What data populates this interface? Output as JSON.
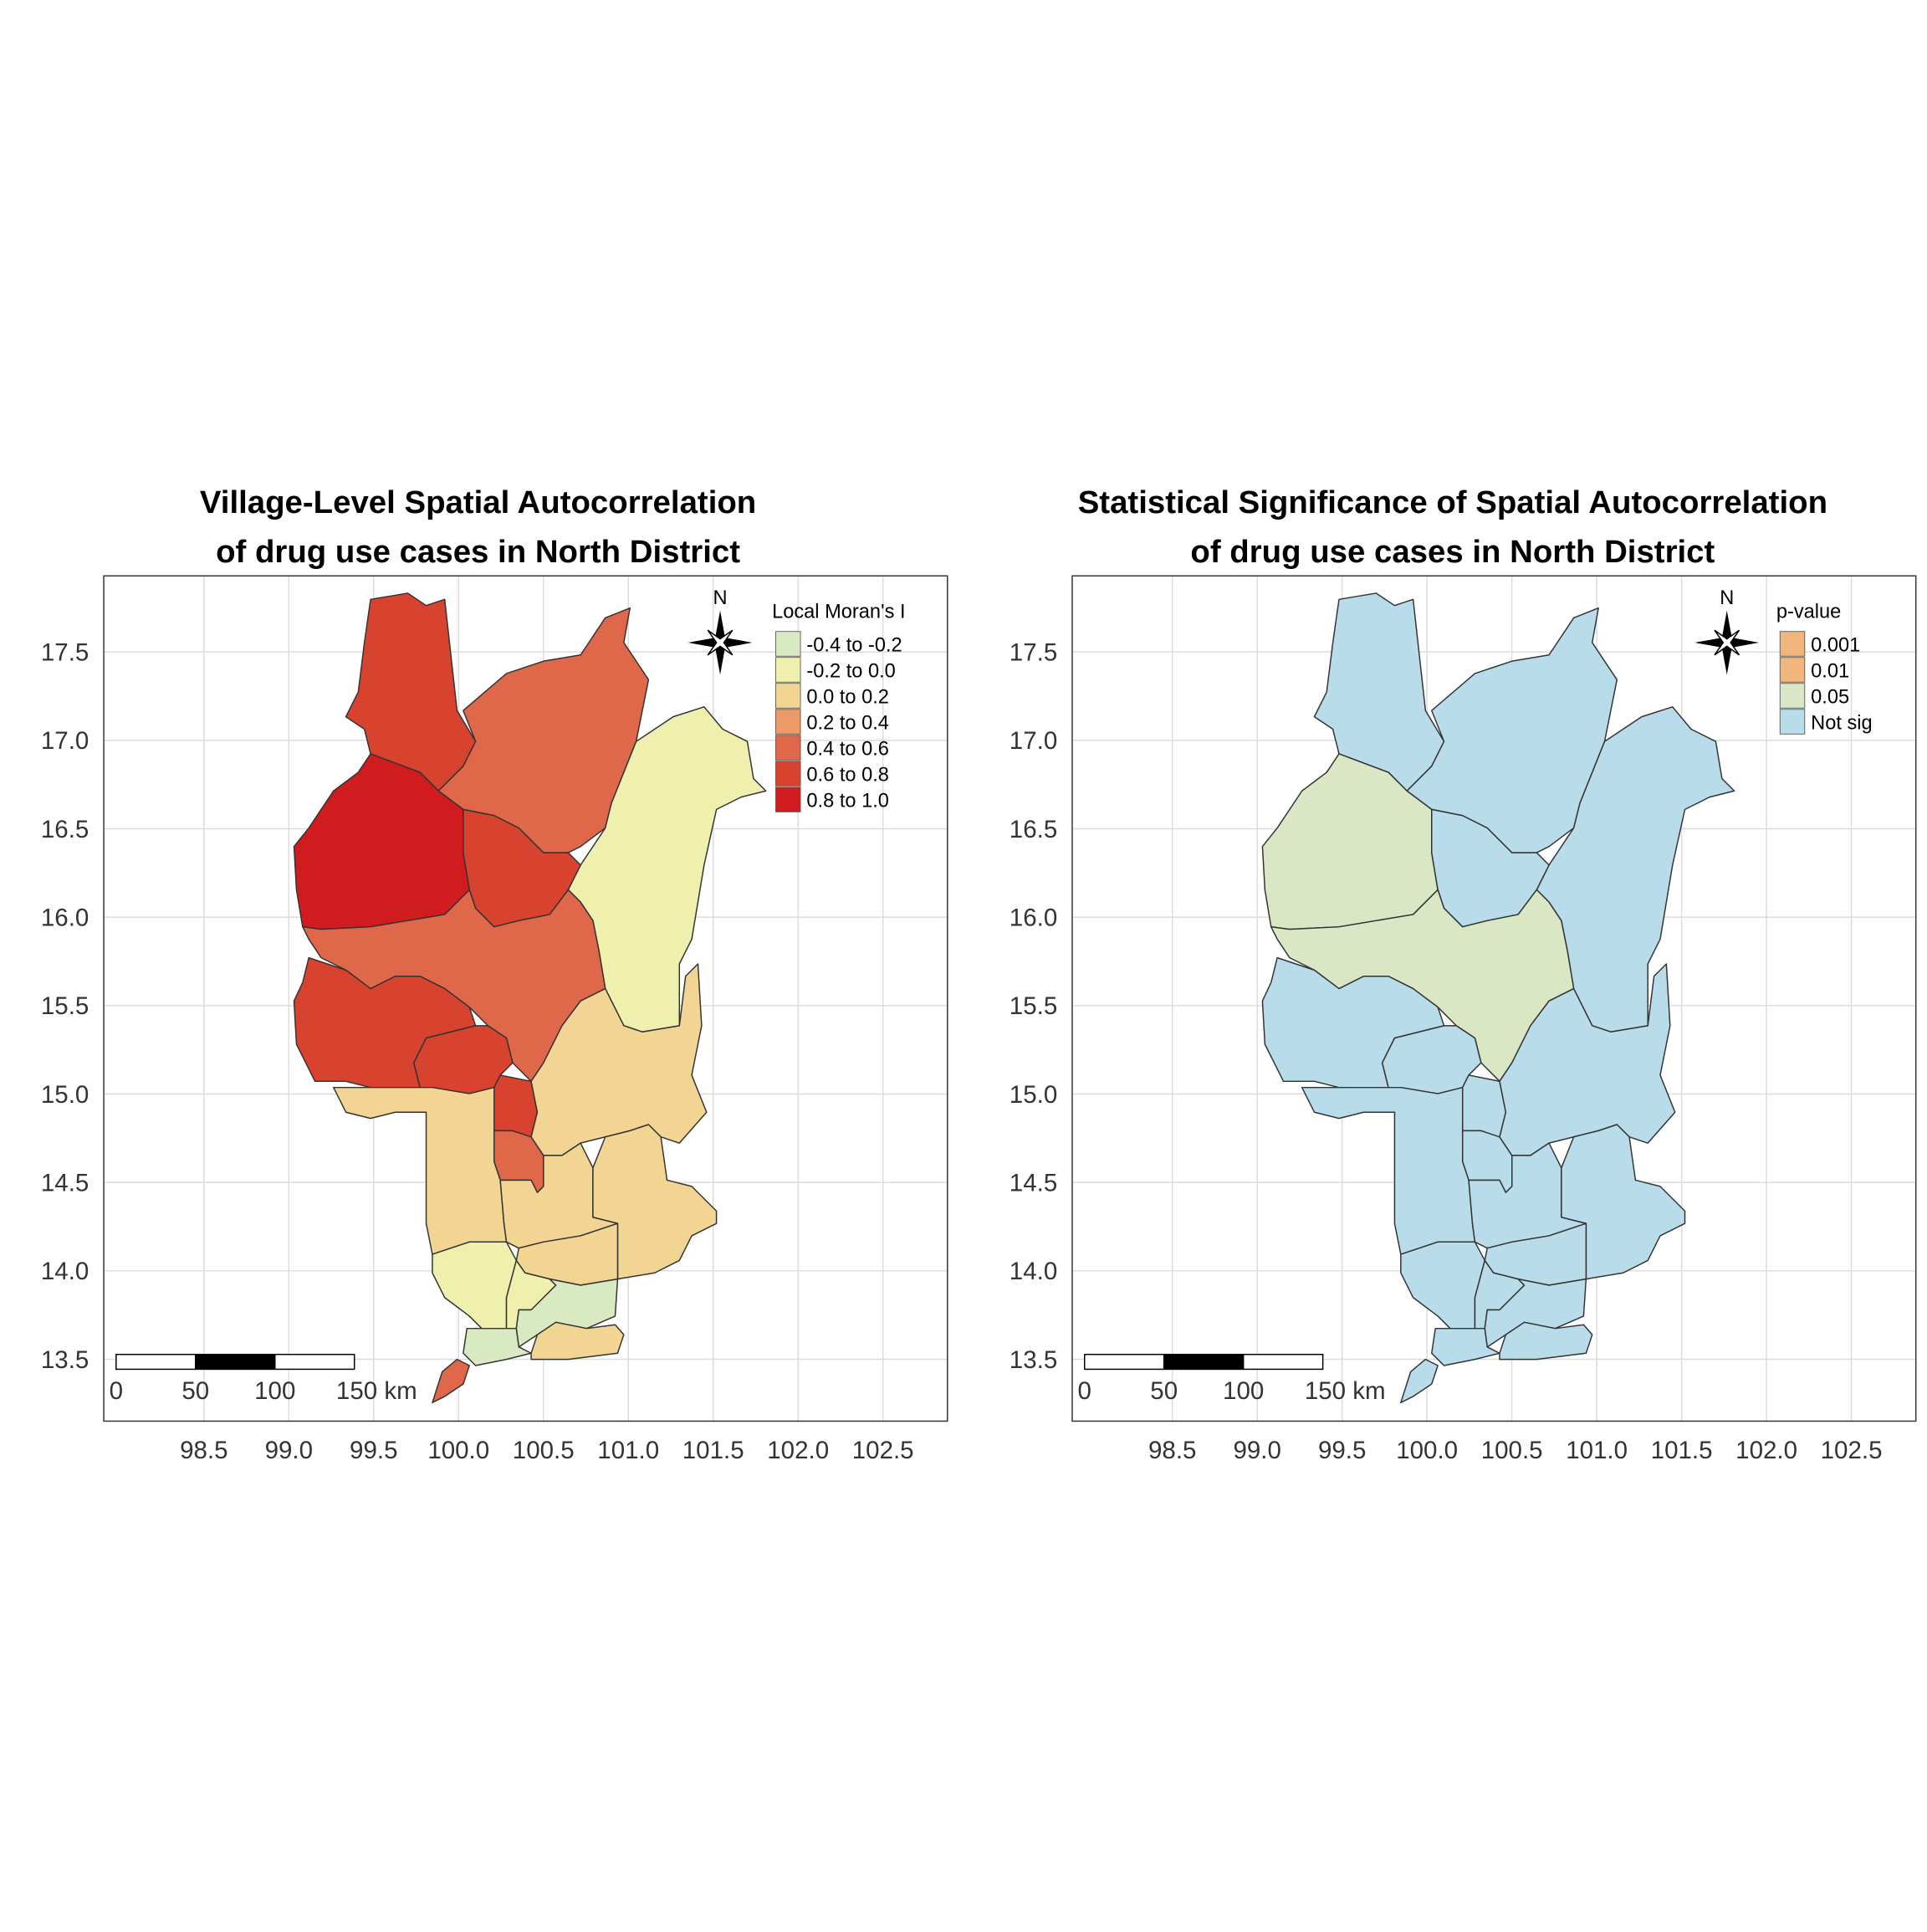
{
  "maps": [
    {
      "title": [
        "Village-Level Spatial Autocorrelation",
        "of drug use cases in North District"
      ],
      "legend_title": "Local Moran's I",
      "legend": [
        {
          "label": "-0.4 to -0.2",
          "color": "#d9eac3"
        },
        {
          "label": "-0.2 to 0.0",
          "color": "#eff0ad"
        },
        {
          "label": "0.0 to 0.2",
          "color": "#f2d592"
        },
        {
          "label": "0.2 to 0.4",
          "color": "#eb9a68"
        },
        {
          "label": "0.4 to 0.6",
          "color": "#e0684a"
        },
        {
          "label": "0.6 to 0.8",
          "color": "#d8432f"
        },
        {
          "label": "0.8 to 1.0",
          "color": "#d01c1f"
        }
      ],
      "north": "N",
      "scalebar": [
        "0",
        "50",
        "100",
        "150 km"
      ],
      "xlim": [
        97.91,
        102.88
      ],
      "ylim": [
        13.15,
        17.93
      ],
      "xticks": [
        98.5,
        {
          "value": 99,
          "label": "99.0"
        },
        99.5,
        {
          "value": 100,
          "label": "100.0"
        },
        100.5,
        {
          "value": 101,
          "label": "101.0"
        },
        101.5,
        {
          "value": 102,
          "label": "102.0"
        },
        102.5
      ],
      "yticks": [
        13.5,
        {
          "value": 14,
          "label": "14.0"
        },
        14.5,
        {
          "value": 15,
          "label": "15.0"
        },
        15.5,
        {
          "value": 16,
          "label": "16.0"
        },
        16.5,
        {
          "value": 17,
          "label": "17.0"
        },
        17.5
      ],
      "grid": true
    },
    {
      "title": [
        "Statistical Significance of Spatial Autocorrelation",
        "of drug use cases in North District"
      ],
      "legend_title": "p-value",
      "legend": [
        {
          "label": "0.001",
          "color": "#f0b67c"
        },
        {
          "label": "0.01",
          "color": "#f0b67c"
        },
        {
          "label": "0.05",
          "color": "#d9e7c5"
        },
        {
          "label": "Not sig",
          "color": "#b9dcea"
        }
      ],
      "north": "N",
      "scalebar": [
        "0",
        "50",
        "100",
        "150 km"
      ],
      "xlim": [
        97.91,
        102.88
      ],
      "ylim": [
        13.15,
        17.93
      ],
      "xticks": [
        98.5,
        {
          "value": 99,
          "label": "99.0"
        },
        99.5,
        {
          "value": 100,
          "label": "100.0"
        },
        100.5,
        {
          "value": 101,
          "label": "101.0"
        },
        101.5,
        {
          "value": 102,
          "label": "102.0"
        },
        102.5
      ],
      "yticks": [
        13.5,
        {
          "value": 14,
          "label": "14.0"
        },
        14.5,
        {
          "value": 15,
          "label": "15.0"
        },
        15.5,
        {
          "value": 16,
          "label": "16.0"
        },
        16.5,
        {
          "value": 17,
          "label": "17.0"
        },
        17.5
      ],
      "grid": true
    }
  ]
}
